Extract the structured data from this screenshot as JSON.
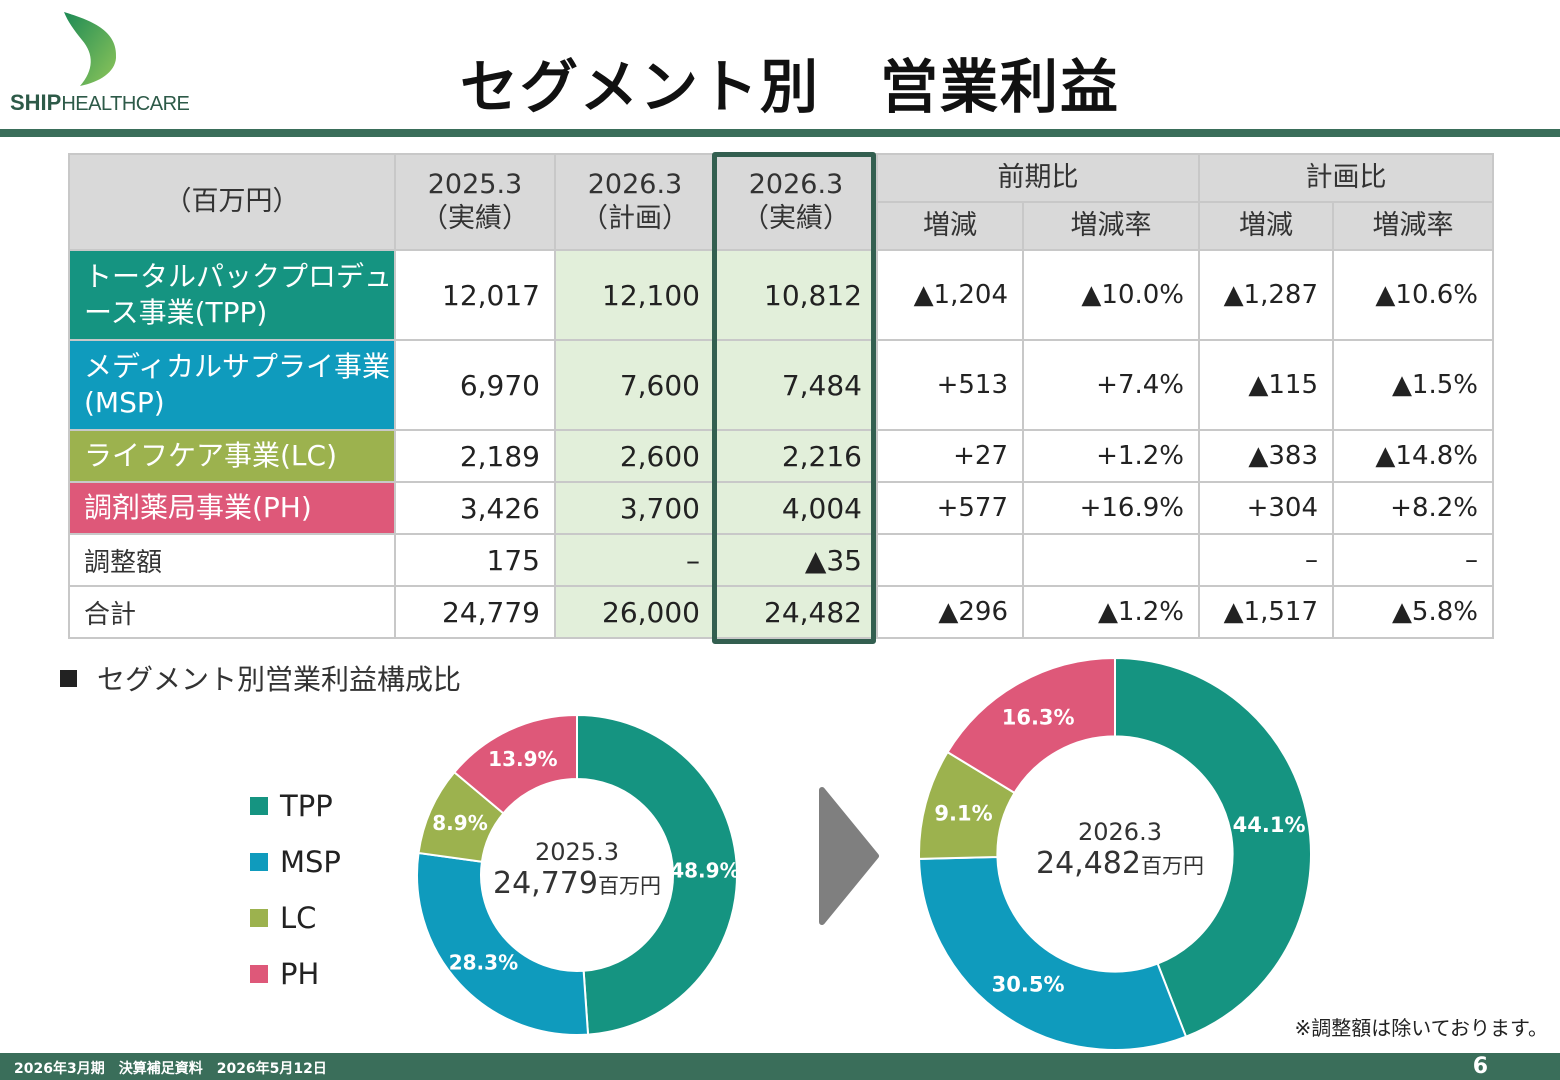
{
  "header": {
    "logo_text_bold": "SHIP",
    "logo_text_light": "HEALTHCARE",
    "title": "セグメント別　営業利益"
  },
  "table": {
    "unit_label": "（百万円）",
    "col_fy25_actual": [
      "2025.3",
      "（実績）"
    ],
    "col_fy26_plan": [
      "2026.3",
      "（計画）"
    ],
    "col_fy26_actual": [
      "2026.3",
      "（実績）"
    ],
    "group_yoy": "前期比",
    "group_vs_plan": "計画比",
    "sub_change": "増減",
    "sub_rate": "増減率",
    "rows": [
      {
        "label": "トータルパックプロデュース事業(TPP)",
        "fy25": "12,017",
        "plan": "12,100",
        "fy26": "10,812",
        "yoy_chg": "▲1,204",
        "yoy_rate": "▲10.0%",
        "plan_chg": "▲1,287",
        "plan_rate": "▲10.6%"
      },
      {
        "label": "メディカルサプライ事業(MSP)",
        "fy25": "6,970",
        "plan": "7,600",
        "fy26": "7,484",
        "yoy_chg": "+513",
        "yoy_rate": "+7.4%",
        "plan_chg": "▲115",
        "plan_rate": "▲1.5%"
      },
      {
        "label": "ライフケア事業(LC)",
        "fy25": "2,189",
        "plan": "2,600",
        "fy26": "2,216",
        "yoy_chg": "+27",
        "yoy_rate": "+1.2%",
        "plan_chg": "▲383",
        "plan_rate": "▲14.8%"
      },
      {
        "label": "調剤薬局事業(PH)",
        "fy25": "3,426",
        "plan": "3,700",
        "fy26": "4,004",
        "yoy_chg": "+577",
        "yoy_rate": "+16.9%",
        "plan_chg": "+304",
        "plan_rate": "+8.2%"
      },
      {
        "label": "調整額",
        "fy25": "175",
        "plan": "–",
        "fy26": "▲35",
        "yoy_chg": "",
        "yoy_rate": "",
        "plan_chg": "–",
        "plan_rate": "–"
      },
      {
        "label": "合計",
        "fy25": "24,779",
        "plan": "26,000",
        "fy26": "24,482",
        "yoy_chg": "▲296",
        "yoy_rate": "▲1.2%",
        "plan_chg": "▲1,517",
        "plan_rate": "▲5.8%"
      }
    ]
  },
  "composition": {
    "heading": "セグメント別営業利益構成比",
    "legend": [
      "TPP",
      "MSP",
      "LC",
      "PH"
    ],
    "colors": {
      "TPP": "#159481",
      "MSP": "#0f9bbd",
      "LC": "#9cb24e",
      "PH": "#de5879"
    },
    "left_center": {
      "year": "2025.3",
      "total": "24,779",
      "unit": "百万円"
    },
    "right_center": {
      "year": "2026.3",
      "total": "24,482",
      "unit": "百万円"
    },
    "note": "※調整額は除いております。"
  },
  "chart_data": [
    {
      "type": "pie",
      "title": "2025.3",
      "categories": [
        "TPP",
        "MSP",
        "LC",
        "PH"
      ],
      "values": [
        48.9,
        28.3,
        8.9,
        13.9
      ],
      "labels": [
        "48.9%",
        "28.3%",
        "8.9%",
        "13.9%"
      ]
    },
    {
      "type": "pie",
      "title": "2026.3",
      "categories": [
        "TPP",
        "MSP",
        "LC",
        "PH"
      ],
      "values": [
        44.1,
        30.5,
        9.1,
        16.3
      ],
      "labels": [
        "44.1%",
        "30.5%",
        "9.1%",
        "16.3%"
      ]
    }
  ],
  "footer": {
    "text": "2026年3月期　決算補足資料　2026年5月12日",
    "page": "6"
  }
}
